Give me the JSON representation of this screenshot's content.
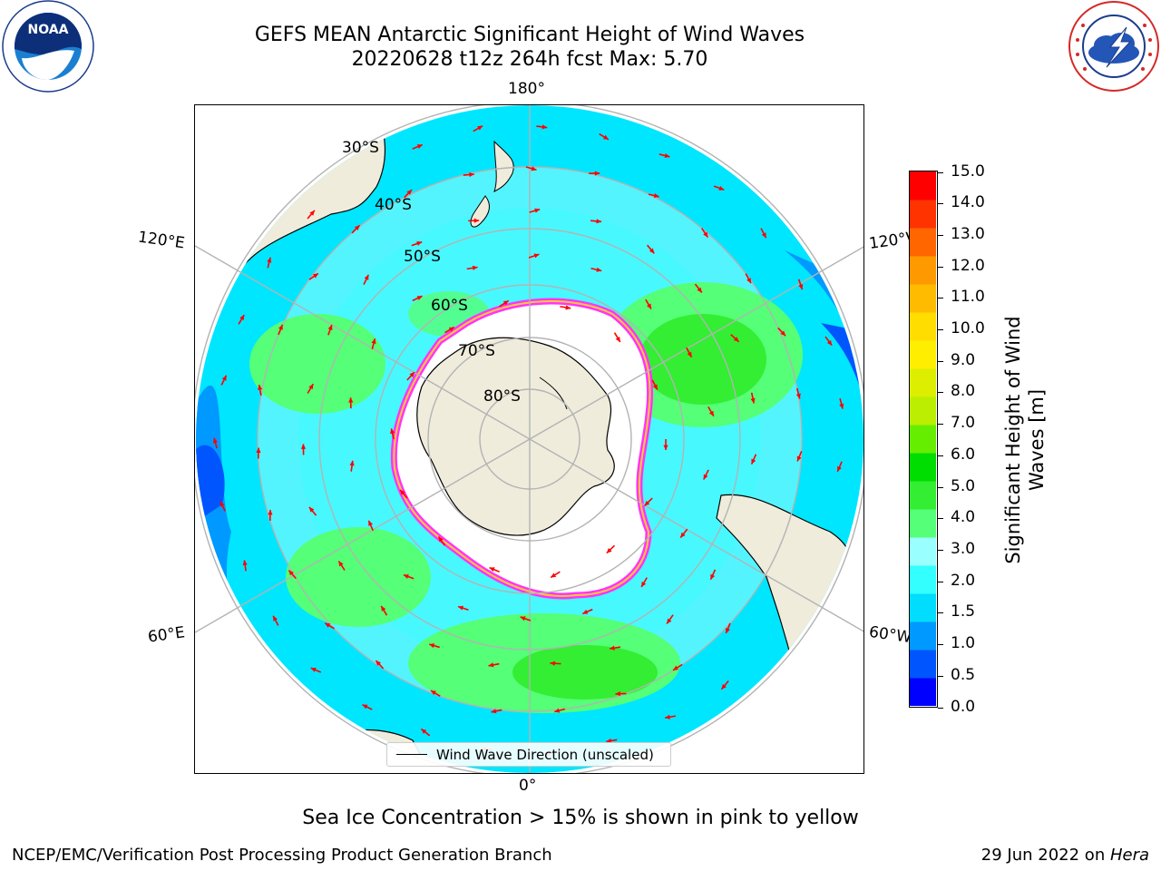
{
  "header": {
    "title_line1": "GEFS MEAN Antarctic Significant Height of Wind Waves",
    "title_line2": "20220628 t12z 264h fcst   Max: 5.70"
  },
  "logos": {
    "noaa_text": "NOAA",
    "noaa_ring_text": "NATIONAL OCEANIC AND ATMOSPHERIC ADMINISTRATION · U.S. DEPARTMENT OF COMMERCE",
    "nws_ring_text": "NATIONAL WEATHER SERVICE"
  },
  "map": {
    "projection": "south-polar-stereographic",
    "longitude_labels": {
      "top": "180°",
      "bottom": "0°",
      "left_upper": "120°E",
      "left_lower": "60°E",
      "right_upper": "120°W",
      "right_lower": "60°W"
    },
    "latitude_labels": [
      "30°S",
      "40°S",
      "50°S",
      "60°S",
      "70°S",
      "80°S"
    ],
    "legend_label": "Wind Wave Direction (unscaled)",
    "colors": {
      "land": "#efecdc",
      "ice_free_ocean_low": "#00e6ff",
      "ice_edge_pink": "#ff33ff",
      "ice_edge_yellow": "#ffcc33",
      "arrow": "#ff0000"
    }
  },
  "colorbar": {
    "title_line1": "Significant Height of Wind",
    "title_line2": "Waves [m]",
    "ticks": [
      "0.0",
      "0.5",
      "1.0",
      "1.5",
      "2.0",
      "3.0",
      "4.0",
      "5.0",
      "6.0",
      "7.0",
      "8.0",
      "9.0",
      "10.0",
      "11.0",
      "12.0",
      "13.0",
      "14.0",
      "15.0"
    ],
    "colors": [
      "#0000ff",
      "#0055ff",
      "#0099ff",
      "#00ddff",
      "#33ffff",
      "#99ffff",
      "#55ff77",
      "#33ee33",
      "#00dd00",
      "#66ee00",
      "#bbee00",
      "#ddee00",
      "#ffee00",
      "#ffdd00",
      "#ffbb00",
      "#ff9900",
      "#ff6600",
      "#ff3300",
      "#ff0000"
    ]
  },
  "footer": {
    "caption": "Sea Ice Concentration > 15% is shown in pink to yellow",
    "credit": "NCEP/EMC/Verification Post Processing Product Generation Branch",
    "date_prefix": "29 Jun 2022 on ",
    "machine": "Hera"
  }
}
